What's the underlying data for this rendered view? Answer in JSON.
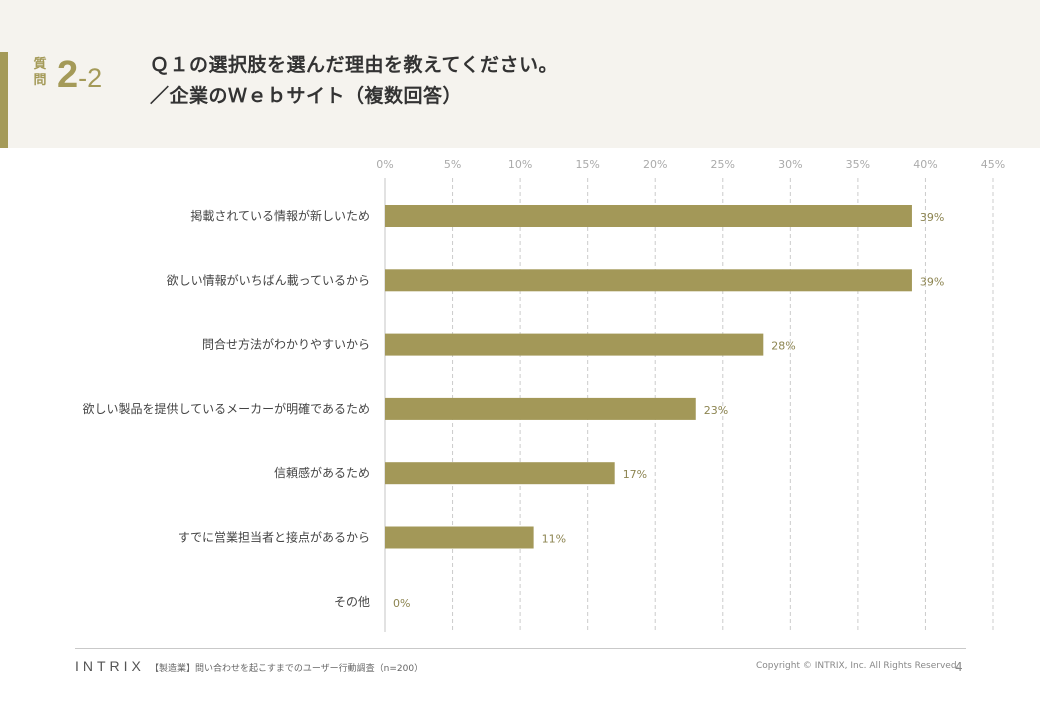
{
  "header": {
    "question_kanji": "質問",
    "question_major": "2",
    "question_minor": "-2",
    "title_line1": "Ｑ１の選択肢を選んだ理由を教えてください。",
    "title_line2": "／企業のＷｅｂサイト（複数回答）"
  },
  "colors": {
    "accent": "#a49a58",
    "bar": "#a39858",
    "header_bg": "#f5f3ee",
    "gridline": "#cccccc",
    "value_label": "#8c8450"
  },
  "chart_data": {
    "type": "bar",
    "orientation": "horizontal",
    "categories": [
      "掲載されている情報が新しいため",
      "欲しい情報がいちばん載っているから",
      "問合せ方法がわかりやすいから",
      "欲しい製品を提供しているメーカーが明確であるため",
      "信頼感があるため",
      "すでに営業担当者と接点があるから",
      "その他"
    ],
    "values": [
      39,
      39,
      28,
      23,
      17,
      11,
      0
    ],
    "value_labels": [
      "39%",
      "39%",
      "28%",
      "23%",
      "17%",
      "11%",
      "0%"
    ],
    "x_ticks": [
      0,
      5,
      10,
      15,
      20,
      25,
      30,
      35,
      40,
      45
    ],
    "x_tick_labels": [
      "0%",
      "5%",
      "10%",
      "15%",
      "20%",
      "25%",
      "30%",
      "35%",
      "40%",
      "45%"
    ],
    "xlim": [
      0,
      45
    ],
    "axis_position": "top",
    "grid": true,
    "legend": "none"
  },
  "footer": {
    "logo": "INTRIX",
    "source": "【製造業】問い合わせを起こすまでのユーザー行動調査（n=200）",
    "copyright": "Copyright © INTRIX, Inc. All Rights Reserved.",
    "page": "4"
  }
}
